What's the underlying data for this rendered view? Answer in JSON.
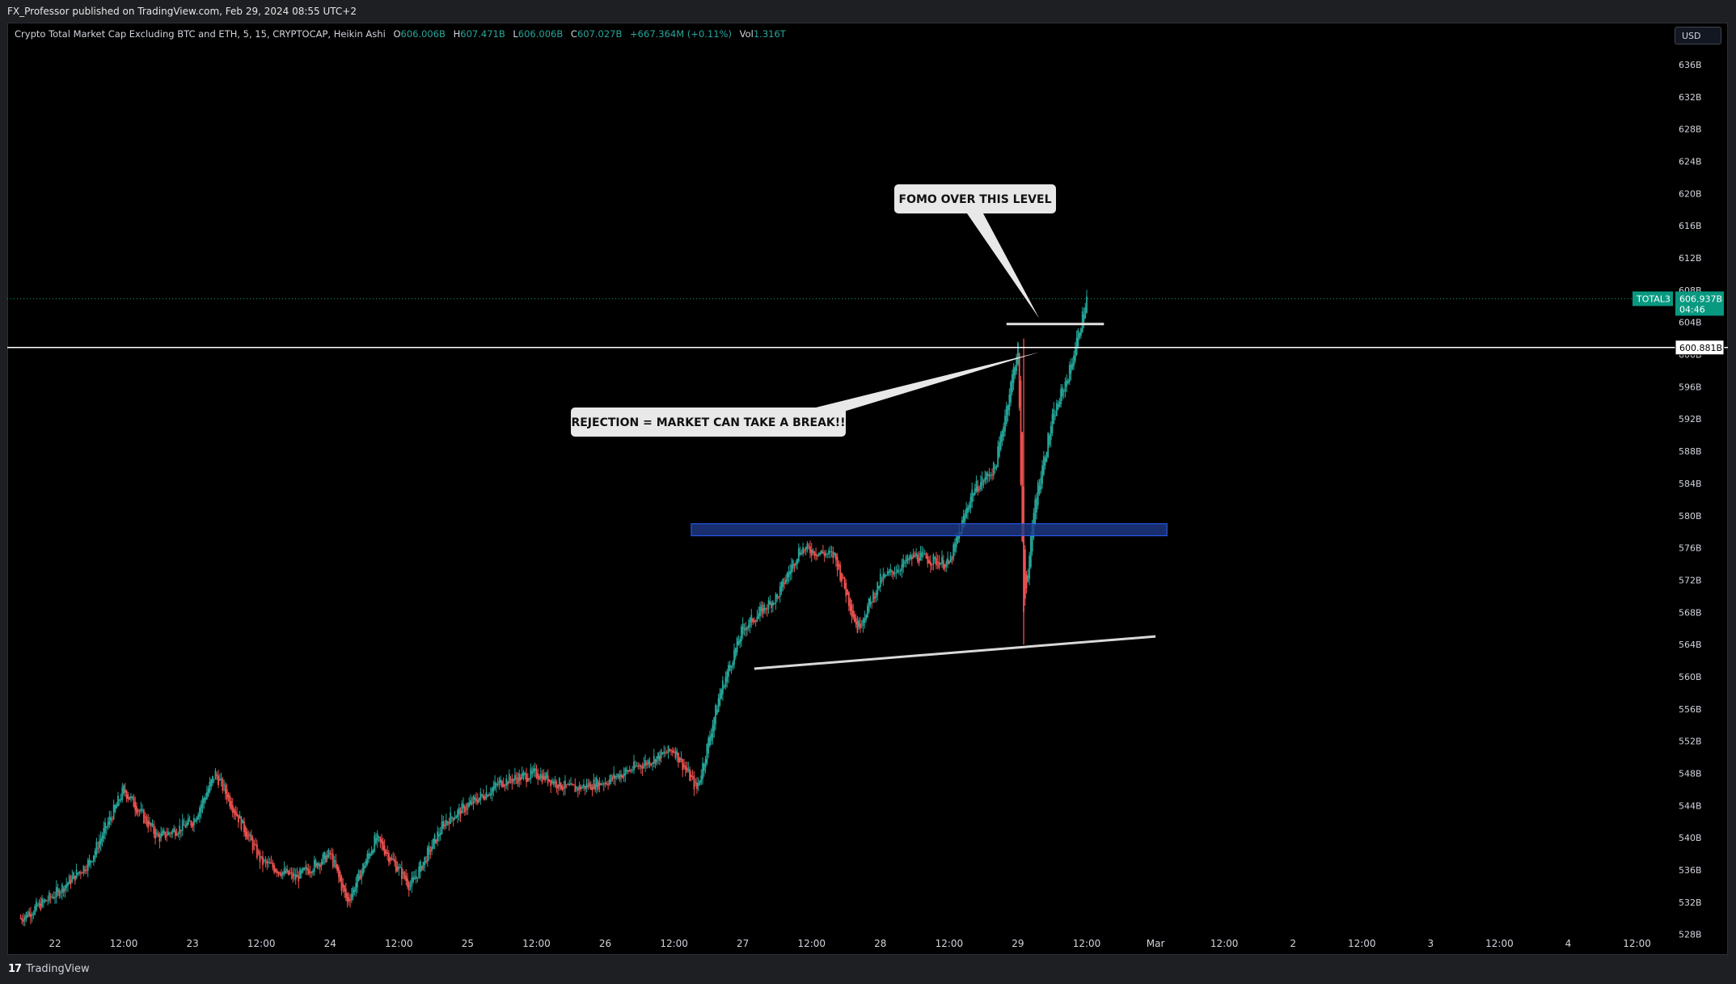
{
  "header": {
    "published": "FX_Professor published on TradingView.com, Feb 29, 2024 08:55 UTC+2"
  },
  "legend": {
    "title": "Crypto Total Market Cap Excluding BTC and ETH, 5, 15, CRYPTOCAP, Heikin Ashi",
    "o_label": "O",
    "o": "606.006B",
    "h_label": "H",
    "h": "607.471B",
    "l_label": "L",
    "l": "606.006B",
    "c_label": "C",
    "c": "607.027B",
    "change": "+667.364M (+0.11%)",
    "vol_label": "Vol",
    "vol": "1.316T"
  },
  "currency": "USD",
  "footer": {
    "brand": "TradingView"
  },
  "colors": {
    "up": "#26a69a",
    "down": "#ef5350",
    "zone": "#1e3a8a",
    "price_tag": "#089981"
  },
  "chart_data": {
    "type": "candlestick",
    "style": "Heikin Ashi",
    "symbol": "TOTAL3",
    "y_axis": {
      "unit": "B",
      "ticks": [
        "636B",
        "632B",
        "628B",
        "624B",
        "620B",
        "616B",
        "612B",
        "608B",
        "604B",
        "600B",
        "596B",
        "592B",
        "588B",
        "584B",
        "580B",
        "576B",
        "572B",
        "568B",
        "564B",
        "560B",
        "556B",
        "552B",
        "548B",
        "544B",
        "540B",
        "536B",
        "532B",
        "528B"
      ],
      "ylim": [
        528,
        638
      ]
    },
    "x_axis": {
      "ticks": [
        "22",
        "12:00",
        "23",
        "12:00",
        "24",
        "12:00",
        "25",
        "12:00",
        "26",
        "12:00",
        "27",
        "12:00",
        "28",
        "12:00",
        "29",
        "12:00",
        "Mar",
        "12:00",
        "2",
        "12:00",
        "3",
        "12:00",
        "4",
        "12:00"
      ]
    },
    "price_path": [
      [
        "Feb 21 18:00",
        530
      ],
      [
        "Feb 22 00:00",
        533
      ],
      [
        "Feb 22 06:00",
        537
      ],
      [
        "Feb 22 12:00",
        546
      ],
      [
        "Feb 22 18:00",
        540
      ],
      [
        "Feb 23 00:00",
        542
      ],
      [
        "Feb 23 04:00",
        548
      ],
      [
        "Feb 23 12:00",
        537
      ],
      [
        "Feb 23 18:00",
        535
      ],
      [
        "Feb 24 00:00",
        538
      ],
      [
        "Feb 24 03:00",
        532
      ],
      [
        "Feb 24 08:00",
        540
      ],
      [
        "Feb 24 14:00",
        534
      ],
      [
        "Feb 24 20:00",
        542
      ],
      [
        "Feb 25 00:00",
        544
      ],
      [
        "Feb 25 06:00",
        547
      ],
      [
        "Feb 25 12:00",
        548
      ],
      [
        "Feb 25 18:00",
        546
      ],
      [
        "Feb 26 00:00",
        547
      ],
      [
        "Feb 26 06:00",
        549
      ],
      [
        "Feb 26 12:00",
        551
      ],
      [
        "Feb 26 16:00",
        546
      ],
      [
        "Feb 26 20:00",
        558
      ],
      [
        "Feb 27 00:00",
        566
      ],
      [
        "Feb 27 06:00",
        570
      ],
      [
        "Feb 27 10:00",
        576
      ],
      [
        "Feb 27 16:00",
        575
      ],
      [
        "Feb 27 20:00",
        566
      ],
      [
        "Feb 28 00:00",
        572
      ],
      [
        "Feb 28 06:00",
        575
      ],
      [
        "Feb 28 12:00",
        574
      ],
      [
        "Feb 28 16:00",
        583
      ],
      [
        "Feb 28 20:00",
        586
      ],
      [
        "Feb 29 00:00",
        601
      ],
      [
        "Feb 29 01:00",
        568
      ],
      [
        "Feb 29 03:00",
        582
      ],
      [
        "Feb 29 06:00",
        592
      ],
      [
        "Feb 29 09:00",
        598
      ],
      [
        "Feb 29 11:00",
        604
      ],
      [
        "Feb 29 12:00",
        606.937
      ]
    ],
    "last_price": "606.937B",
    "countdown": "04:46",
    "horizontal_level": "600.881B",
    "annotations": [
      {
        "text": "FOMO OVER THIS LEVEL",
        "type": "callout"
      },
      {
        "text": "REJECTION = MARKET CAN TAKE A BREAK!!",
        "type": "callout"
      }
    ],
    "drawings": [
      {
        "type": "rectangle",
        "y_range": [
          577.5,
          579
        ],
        "color": "#1e3a8a"
      },
      {
        "type": "trendline",
        "from": [
          561,
          "Feb 27 02:00"
        ],
        "to": [
          565,
          "Mar 1 00:00"
        ]
      },
      {
        "type": "horizontal_segment",
        "value": 603.8
      },
      {
        "type": "horizontal_line",
        "value": 600.881
      }
    ]
  }
}
